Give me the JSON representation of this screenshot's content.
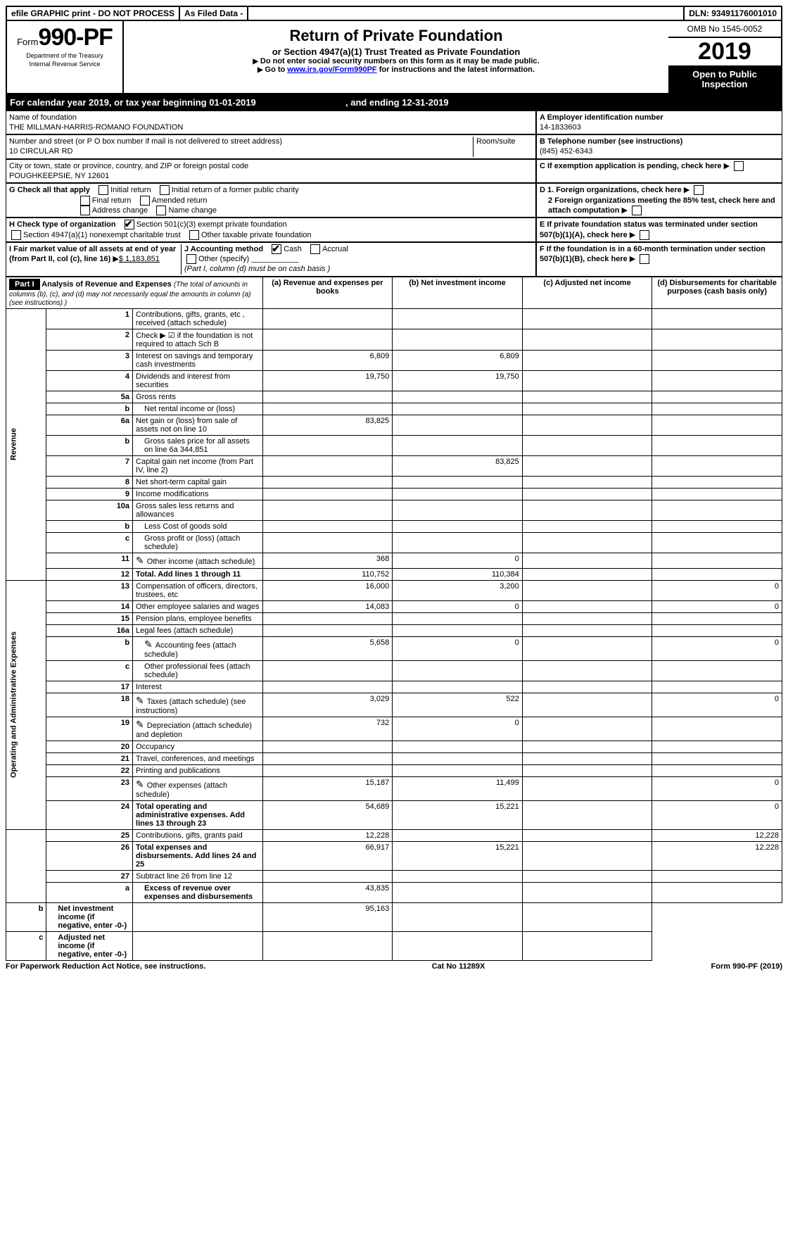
{
  "topbar": {
    "efile": "efile GRAPHIC print - DO NOT PROCESS",
    "asfiled": "As Filed Data -",
    "dln_label": "DLN:",
    "dln": "93491176001010"
  },
  "header": {
    "form": "Form",
    "formnum": "990-PF",
    "dept": "Department of the Treasury",
    "irs": "Internal Revenue Service",
    "title": "Return of Private Foundation",
    "subtitle": "or Section 4947(a)(1) Trust Treated as Private Foundation",
    "note1": "Do not enter social security numbers on this form as it may be made public.",
    "note2_pre": "Go to ",
    "note2_link": "www.irs.gov/Form990PF",
    "note2_post": " for instructions and the latest information.",
    "omb": "OMB No 1545-0052",
    "year": "2019",
    "open": "Open to Public Inspection"
  },
  "calyear": {
    "pre": "For calendar year 2019, or tax year beginning ",
    "begin": "01-01-2019",
    "mid": ", and ending ",
    "end": "12-31-2019"
  },
  "A": {
    "lbl": "Name of foundation",
    "val": "THE MILLMAN-HARRIS-ROMANO FOUNDATION",
    "ein_lbl": "A Employer identification number",
    "ein": "14-1833603"
  },
  "addr": {
    "lbl": "Number and street (or P O  box number if mail is not delivered to street address)",
    "room": "Room/suite",
    "val": "10 CIRCULAR RD",
    "tel_lbl": "B Telephone number (see instructions)",
    "tel": "(845) 452-6343",
    "city_lbl": "City or town, state or province, country, and ZIP or foreign postal code",
    "city": "POUGHKEEPSIE, NY 12601",
    "C": "C If exemption application is pending, check here"
  },
  "G": {
    "lbl": "G Check all that apply",
    "opts": [
      "Initial return",
      "Initial return of a former public charity",
      "Final return",
      "Amended return",
      "Address change",
      "Name change"
    ]
  },
  "H": {
    "lbl": "H Check type of organization",
    "o1": "Section 501(c)(3) exempt private foundation",
    "o2": "Section 4947(a)(1) nonexempt charitable trust",
    "o3": "Other taxable private foundation"
  },
  "D": {
    "d1": "D 1. Foreign organizations, check here",
    "d2": "2  Foreign organizations meeting the 85% test, check here and attach computation",
    "E": "E  If private foundation status was terminated under section 507(b)(1)(A), check here",
    "F": "F  If the foundation is in a 60-month termination under section 507(b)(1)(B), check here"
  },
  "I": {
    "lbl": "I Fair market value of all assets at end of year (from Part II, col  (c), line 16)",
    "amt": "$  1,183,851"
  },
  "J": {
    "lbl": "J Accounting method",
    "cash": "Cash",
    "accrual": "Accrual",
    "other": "Other (specify)",
    "note": "(Part I, column (d) must be on cash basis )"
  },
  "partI": {
    "hdr": "Part I",
    "title": "Analysis of Revenue and Expenses",
    "sub": "(The total of amounts in columns (b), (c), and (d) may not necessarily equal the amounts in column (a) (see instructions) )",
    "cols": {
      "a": "(a)  Revenue and expenses per books",
      "b": "(b)  Net investment income",
      "c": "(c)  Adjusted net income",
      "d": "(d)  Disbursements for charitable purposes (cash basis only)"
    }
  },
  "sections": {
    "rev": "Revenue",
    "exp": "Operating and Administrative Expenses"
  },
  "rows": [
    {
      "n": "1",
      "d": "Contributions, gifts, grants, etc , received (attach schedule)"
    },
    {
      "n": "2",
      "d": "Check ▶ ☑ if the foundation is not required to attach Sch B",
      "dotsOnly": true
    },
    {
      "n": "3",
      "d": "Interest on savings and temporary cash investments",
      "a": "6,809",
      "b": "6,809"
    },
    {
      "n": "4",
      "d": "Dividends and interest from securities",
      "a": "19,750",
      "b": "19,750"
    },
    {
      "n": "5a",
      "d": "Gross rents"
    },
    {
      "n": "b",
      "d": "Net rental income or (loss)",
      "ind": true
    },
    {
      "n": "6a",
      "d": "Net gain or (loss) from sale of assets not on line 10",
      "a": "83,825"
    },
    {
      "n": "b",
      "d": "Gross sales price for all assets on line 6a          344,851",
      "ind": true
    },
    {
      "n": "7",
      "d": "Capital gain net income (from Part IV, line 2)",
      "b": "83,825"
    },
    {
      "n": "8",
      "d": "Net short-term capital gain"
    },
    {
      "n": "9",
      "d": "Income modifications"
    },
    {
      "n": "10a",
      "d": "Gross sales less returns and allowances"
    },
    {
      "n": "b",
      "d": "Less  Cost of goods sold",
      "ind": true
    },
    {
      "n": "c",
      "d": "Gross profit or (loss) (attach schedule)",
      "ind": true
    },
    {
      "n": "11",
      "d": "Other income (attach schedule)",
      "icon": true,
      "a": "368",
      "b": "0"
    },
    {
      "n": "12",
      "d": "Total. Add lines 1 through 11",
      "bold": true,
      "a": "110,752",
      "b": "110,384"
    },
    {
      "n": "13",
      "d": "Compensation of officers, directors, trustees, etc",
      "a": "16,000",
      "b": "3,200",
      "d4": "0"
    },
    {
      "n": "14",
      "d": "Other employee salaries and wages",
      "a": "14,083",
      "b": "0",
      "d4": "0"
    },
    {
      "n": "15",
      "d": "Pension plans, employee benefits"
    },
    {
      "n": "16a",
      "d": "Legal fees (attach schedule)"
    },
    {
      "n": "b",
      "d": "Accounting fees (attach schedule)",
      "ind": true,
      "icon": true,
      "a": "5,658",
      "b": "0",
      "d4": "0"
    },
    {
      "n": "c",
      "d": "Other professional fees (attach schedule)",
      "ind": true
    },
    {
      "n": "17",
      "d": "Interest"
    },
    {
      "n": "18",
      "d": "Taxes (attach schedule) (see instructions)",
      "icon": true,
      "a": "3,029",
      "b": "522",
      "d4": "0"
    },
    {
      "n": "19",
      "d": "Depreciation (attach schedule) and depletion",
      "icon": true,
      "a": "732",
      "b": "0"
    },
    {
      "n": "20",
      "d": "Occupancy"
    },
    {
      "n": "21",
      "d": "Travel, conferences, and meetings"
    },
    {
      "n": "22",
      "d": "Printing and publications"
    },
    {
      "n": "23",
      "d": "Other expenses (attach schedule)",
      "icon": true,
      "a": "15,187",
      "b": "11,499",
      "d4": "0"
    },
    {
      "n": "24",
      "d": "Total operating and administrative expenses. Add lines 13 through 23",
      "bold": true,
      "a": "54,689",
      "b": "15,221",
      "d4": "0"
    },
    {
      "n": "25",
      "d": "Contributions, gifts, grants paid",
      "a": "12,228",
      "d4": "12,228"
    },
    {
      "n": "26",
      "d": "Total expenses and disbursements. Add lines 24 and 25",
      "bold": true,
      "a": "66,917",
      "b": "15,221",
      "d4": "12,228"
    },
    {
      "n": "27",
      "d": "Subtract line 26 from line 12"
    },
    {
      "n": "a",
      "d": "Excess of revenue over expenses and disbursements",
      "ind": true,
      "bold": true,
      "a": "43,835"
    },
    {
      "n": "b",
      "d": "Net investment income (if negative, enter -0-)",
      "ind": true,
      "bold": true,
      "b": "95,163"
    },
    {
      "n": "c",
      "d": "Adjusted net income (if negative, enter -0-)",
      "ind": true,
      "bold": true
    }
  ],
  "footer": {
    "l": "For Paperwork Reduction Act Notice, see instructions.",
    "c": "Cat No 11289X",
    "r": "Form 990-PF (2019)"
  }
}
